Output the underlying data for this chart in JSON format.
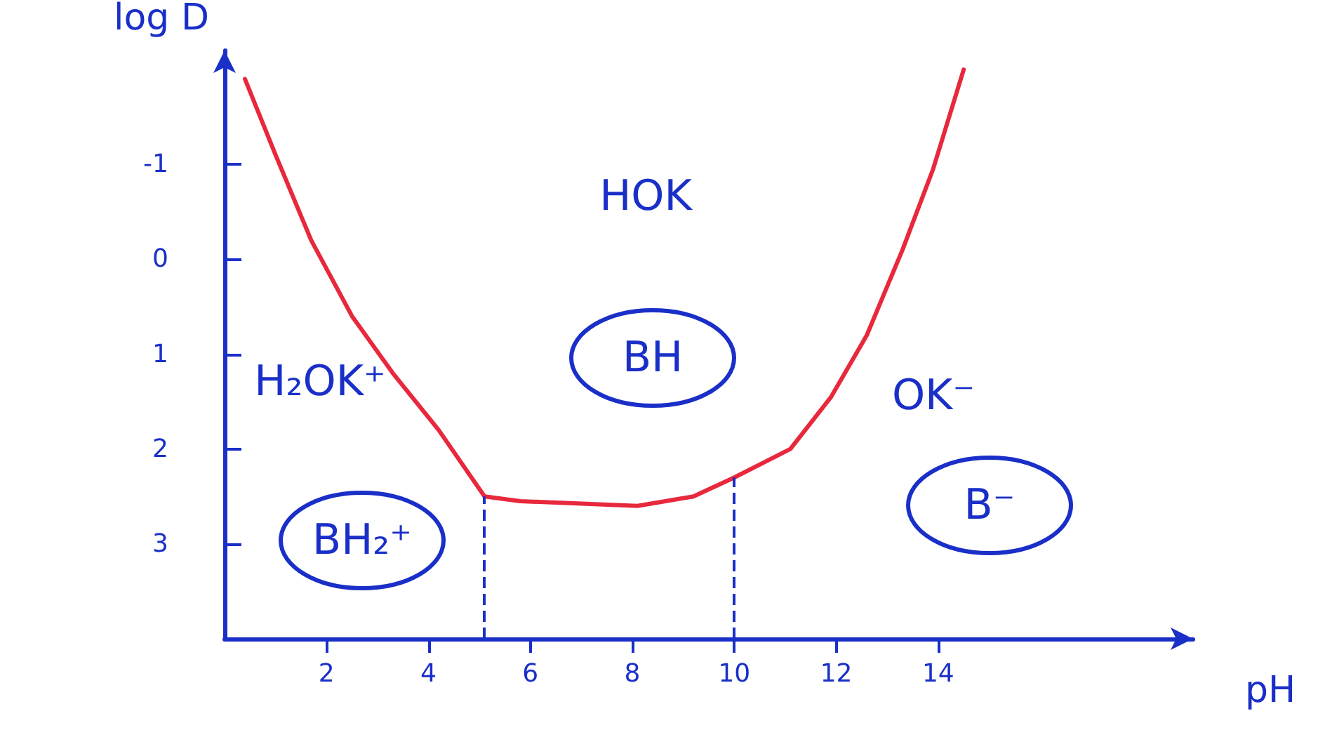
{
  "chart_data": {
    "type": "line",
    "xlabel": "pH",
    "ylabel": "log D",
    "x": [
      0.4,
      1.0,
      1.7,
      2.5,
      3.3,
      4.2,
      5.1,
      5.8,
      8.1,
      9.2,
      10.0,
      11.1,
      11.9,
      12.6,
      13.3,
      13.9,
      14.5
    ],
    "series": [
      {
        "color": "#e8283c",
        "values": [
          -1.9,
          -1.1,
          -0.2,
          0.6,
          1.2,
          1.8,
          2.5,
          2.55,
          2.6,
          2.5,
          2.3,
          2.0,
          1.45,
          0.8,
          -0.1,
          -0.95,
          -2.0
        ]
      }
    ],
    "xlim": [
      0,
      19
    ],
    "xticks": [
      2,
      4,
      6,
      8,
      10,
      12,
      14
    ],
    "ylim": [
      4,
      -2.2
    ],
    "yticks": [
      -1,
      0,
      1,
      2,
      3
    ],
    "ref_lines": [
      {
        "axis": "x",
        "value": 5.1,
        "color": "#1a2fc8",
        "line_style": "dashed"
      },
      {
        "axis": "x",
        "value": 10.0,
        "color": "#1a2fc8",
        "line_style": "dashed"
      }
    ],
    "annotations": [
      "HOK",
      "H₂OK⁺",
      "BH",
      "OK⁻",
      "BH₂⁺",
      "B⁻"
    ],
    "grid": false,
    "marker": "none",
    "line_style": "solid"
  }
}
